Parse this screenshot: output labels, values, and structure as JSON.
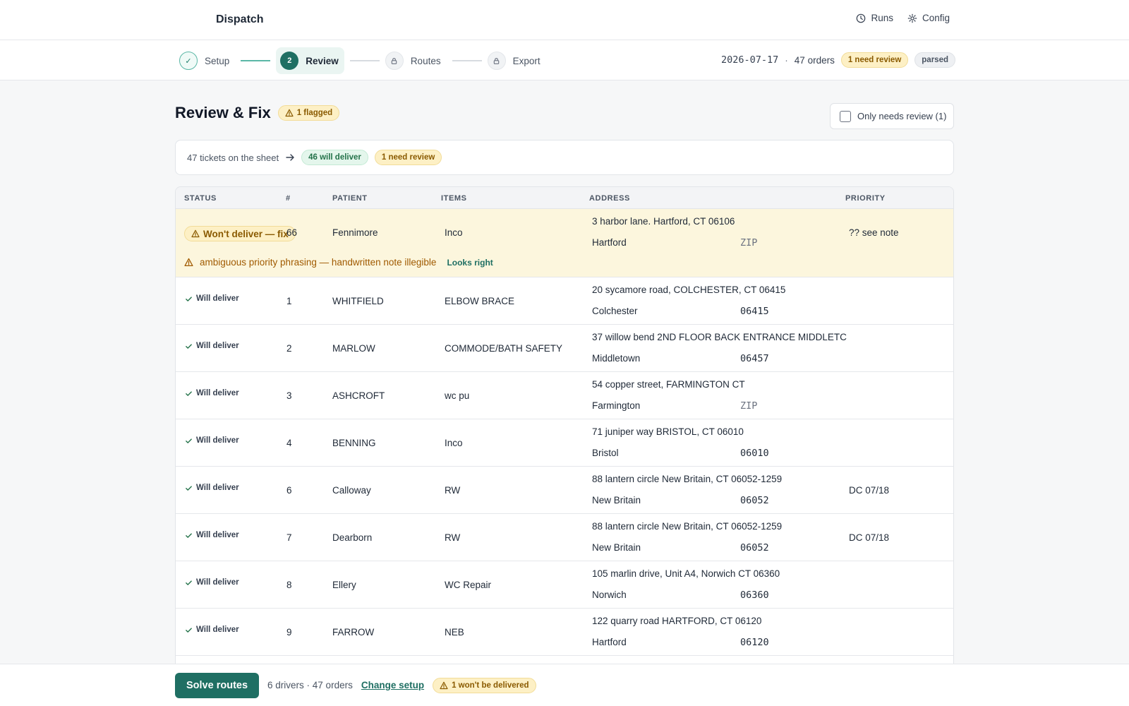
{
  "header": {
    "title": "Dispatch",
    "nav": [
      {
        "label": "Runs",
        "icon": "clock-icon"
      },
      {
        "label": "Config",
        "icon": "gear-icon"
      }
    ]
  },
  "stepper": {
    "steps": [
      {
        "label": "Setup",
        "state": "done",
        "marker": "✓"
      },
      {
        "label": "Review",
        "state": "active",
        "marker": "2"
      },
      {
        "label": "Routes",
        "state": "locked",
        "marker": "lock-icon"
      },
      {
        "label": "Export",
        "state": "locked",
        "marker": "lock-icon"
      }
    ],
    "date": "2026-07-17",
    "sep": "·",
    "orders": "47 orders",
    "review_badge": "1 need review",
    "parsed_badge": "parsed"
  },
  "page": {
    "title": "Review & Fix",
    "flag_badge": "1 flagged",
    "filter_label": "Only needs review (1)",
    "filter_checked": false
  },
  "summary": {
    "text": "47 tickets on the sheet",
    "deliver_badge": "46 will deliver",
    "review_badge": "1 need review"
  },
  "table": {
    "headers": [
      "STATUS",
      "#",
      "PATIENT",
      "ITEMS",
      "ADDRESS",
      "PRIORITY"
    ],
    "flagged": {
      "status": "Won't deliver — fix",
      "num": "66",
      "patient": "Fennimore",
      "items": "Inco",
      "address": "3 harbor lane. Hartford, CT 06106",
      "city": "Hartford",
      "zip": "ZIP",
      "priority": "?? see note",
      "note": "ambiguous priority phrasing — handwritten note illegible",
      "action": "Looks right"
    },
    "rows": [
      {
        "status": "Will deliver",
        "num": "1",
        "patient": "WHITFIELD",
        "items": "ELBOW BRACE",
        "address": "20 sycamore road, COLCHESTER, CT 06415",
        "city": "Colchester",
        "zip": "06415",
        "priority": ""
      },
      {
        "status": "Will deliver",
        "num": "2",
        "patient": "MARLOW",
        "items": "COMMODE/BATH SAFETY",
        "address": "37 willow bend 2ND FLOOR BACK ENTRANCE MIDDLETC",
        "city": "Middletown",
        "zip": "06457",
        "priority": ""
      },
      {
        "status": "Will deliver",
        "num": "3",
        "patient": "ASHCROFT",
        "items": "wc pu",
        "address": "54 copper street, FARMINGTON CT",
        "city": "Farmington",
        "zip": "ZIP",
        "priority": ""
      },
      {
        "status": "Will deliver",
        "num": "4",
        "patient": "BENNING",
        "items": "Inco",
        "address": "71 juniper way BRISTOL, CT 06010",
        "city": "Bristol",
        "zip": "06010",
        "priority": ""
      },
      {
        "status": "Will deliver",
        "num": "6",
        "patient": "Calloway",
        "items": "RW",
        "address": "88 lantern circle New Britain, CT 06052-1259",
        "city": "New Britain",
        "zip": "06052",
        "priority": "DC 07/18"
      },
      {
        "status": "Will deliver",
        "num": "7",
        "patient": "Dearborn",
        "items": "RW",
        "address": "88 lantern circle New Britain, CT 06052-1259",
        "city": "New Britain",
        "zip": "06052",
        "priority": "DC 07/18"
      },
      {
        "status": "Will deliver",
        "num": "8",
        "patient": "Ellery",
        "items": "WC Repair",
        "address": "105 marlin drive, Unit A4, Norwich CT 06360",
        "city": "Norwich",
        "zip": "06360",
        "priority": ""
      },
      {
        "status": "Will deliver",
        "num": "9",
        "patient": "FARROW",
        "items": "NEB",
        "address": "122 quarry road HARTFORD, CT 06120",
        "city": "Hartford",
        "zip": "06120",
        "priority": ""
      }
    ]
  },
  "footer": {
    "primary": "Solve routes",
    "info": "6 drivers · 47 orders",
    "link": "Change setup",
    "warn_badge": "1 won't be delivered"
  },
  "colors": {
    "accent": "#1f6f63",
    "warn_bg": "#fcf6dd",
    "warn_text": "#a05a00",
    "ok_bg": "#e4f6ec"
  }
}
